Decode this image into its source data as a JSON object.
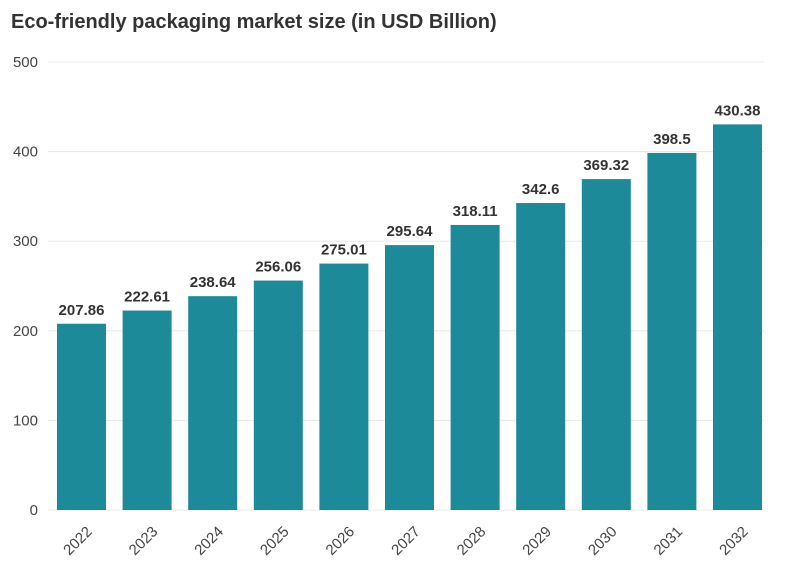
{
  "chart_data": {
    "type": "bar",
    "title": "Eco-friendly packaging market size (in USD Billion)",
    "categories": [
      "2022",
      "2023",
      "2024",
      "2025",
      "2026",
      "2027",
      "2028",
      "2029",
      "2030",
      "2031",
      "2032"
    ],
    "values": [
      207.86,
      222.61,
      238.64,
      256.06,
      275.01,
      295.64,
      318.11,
      342.6,
      369.32,
      398.5,
      430.38
    ],
    "data_labels": [
      "207.86",
      "222.61",
      "238.64",
      "256.06",
      "275.01",
      "295.64",
      "318.11",
      "342.6",
      "369.32",
      "398.5",
      "430.38"
    ],
    "y_ticks": [
      0,
      100,
      200,
      300,
      400,
      500
    ],
    "ylim": [
      0,
      500
    ],
    "xlabel": "",
    "ylabel": "",
    "grid": true,
    "legend": "none",
    "bar_color": "#1c8a98",
    "grid_color": "#e8e8e8"
  }
}
